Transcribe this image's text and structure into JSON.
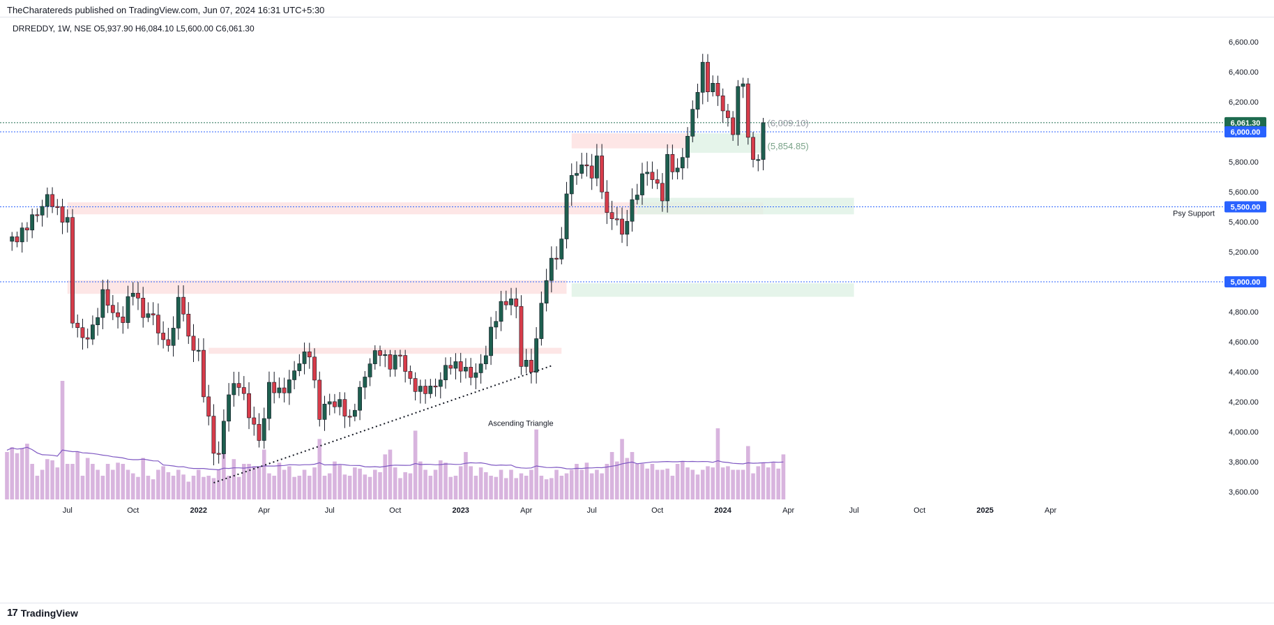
{
  "header": {
    "published": "TheCharatereds published on TradingView.com, Jun 07, 2024 16:31 UTC+5:30"
  },
  "legend": {
    "text": "DRREDDY, 1W, NSE  O5,937.90  H6,084.10  L5,600.00  C6,061.30"
  },
  "footer": {
    "brand": "TradingView",
    "logo_glyph": "17"
  },
  "colors": {
    "up": "#1e5f4f",
    "down": "#d73c4a",
    "volume": "#d8b4de",
    "ma": "#7e57c2",
    "axis_text": "#131722",
    "blue_badge": "#2962ff",
    "green_badge": "#1e6b4f"
  },
  "chart_data": {
    "type": "candlestick",
    "title": "DRREDDY, 1W, NSE",
    "ohlc": {
      "open": "5,937.90",
      "high": "6,084.10",
      "low": "5,600.00",
      "close": "6,061.30"
    },
    "ylim": [
      3550,
      6700
    ],
    "y_ticks": [
      "6,600.00",
      "6,400.00",
      "6,200.00",
      "6,000.00",
      "5,800.00",
      "5,600.00",
      "5,400.00",
      "5,200.00",
      "5,000.00",
      "4,800.00",
      "4,600.00",
      "4,400.00",
      "4,200.00",
      "4,000.00",
      "3,800.00",
      "3,600.00"
    ],
    "x_ticks": [
      "Jul",
      "Oct",
      "2022",
      "Apr",
      "Jul",
      "Oct",
      "2023",
      "Apr",
      "Jul",
      "Oct",
      "2024",
      "Apr",
      "Jul",
      "Oct",
      "2025",
      "Apr"
    ],
    "x_ticks_weeks": [
      12,
      25,
      38,
      51,
      64,
      77,
      90,
      103,
      116,
      129,
      142,
      155,
      168,
      181,
      194,
      207
    ],
    "anchors": [
      [
        0,
        5250
      ],
      [
        5,
        5400
      ],
      [
        8,
        5580
      ],
      [
        10,
        5450
      ],
      [
        12,
        5420
      ],
      [
        13,
        4750
      ],
      [
        15,
        4600
      ],
      [
        17,
        4700
      ],
      [
        19,
        4900
      ],
      [
        21,
        4800
      ],
      [
        23,
        4750
      ],
      [
        25,
        4950
      ],
      [
        27,
        4800
      ],
      [
        29,
        4750
      ],
      [
        31,
        4600
      ],
      [
        33,
        4650
      ],
      [
        34,
        4900
      ],
      [
        36,
        4650
      ],
      [
        38,
        4500
      ],
      [
        39,
        4250
      ],
      [
        41,
        3900
      ],
      [
        42,
        3850
      ],
      [
        44,
        4250
      ],
      [
        46,
        4350
      ],
      [
        48,
        4100
      ],
      [
        50,
        3950
      ],
      [
        52,
        4300
      ],
      [
        54,
        4250
      ],
      [
        56,
        4350
      ],
      [
        58,
        4450
      ],
      [
        60,
        4550
      ],
      [
        62,
        4100
      ],
      [
        64,
        4200
      ],
      [
        66,
        4200
      ],
      [
        68,
        4050
      ],
      [
        70,
        4300
      ],
      [
        72,
        4450
      ],
      [
        74,
        4550
      ],
      [
        76,
        4450
      ],
      [
        78,
        4500
      ],
      [
        80,
        4350
      ],
      [
        82,
        4250
      ],
      [
        84,
        4300
      ],
      [
        86,
        4350
      ],
      [
        88,
        4450
      ],
      [
        90,
        4450
      ],
      [
        92,
        4350
      ],
      [
        94,
        4450
      ],
      [
        96,
        4650
      ],
      [
        98,
        4850
      ],
      [
        100,
        4900
      ],
      [
        101,
        4800
      ],
      [
        102,
        4450
      ],
      [
        104,
        4450
      ],
      [
        105,
        4600
      ],
      [
        106,
        4850
      ],
      [
        107,
        5000
      ],
      [
        108,
        5150
      ],
      [
        110,
        5250
      ],
      [
        111,
        5600
      ],
      [
        113,
        5750
      ],
      [
        114,
        5800
      ],
      [
        116,
        5700
      ],
      [
        117,
        5800
      ],
      [
        118,
        5650
      ],
      [
        119,
        5450
      ],
      [
        121,
        5400
      ],
      [
        122,
        5300
      ],
      [
        123,
        5450
      ],
      [
        125,
        5600
      ],
      [
        127,
        5750
      ],
      [
        129,
        5650
      ],
      [
        130,
        5550
      ],
      [
        131,
        5800
      ],
      [
        133,
        5750
      ],
      [
        135,
        5950
      ],
      [
        137,
        6300
      ],
      [
        138,
        6450
      ],
      [
        139,
        6300
      ],
      [
        141,
        6250
      ],
      [
        142,
        6150
      ],
      [
        143,
        6100
      ],
      [
        144,
        6000
      ],
      [
        145,
        6250
      ],
      [
        146,
        6350
      ],
      [
        147,
        5950
      ],
      [
        148,
        5850
      ],
      [
        149,
        5800
      ],
      [
        150,
        6061
      ]
    ],
    "volume": [
      0.4,
      0.44,
      0.39,
      0.43,
      0.47,
      0.3,
      0.2,
      0.25,
      0.34,
      0.33,
      0.27,
      1.0,
      0.3,
      0.3,
      0.4,
      0.2,
      0.35,
      0.3,
      0.25,
      0.2,
      0.3,
      0.25,
      0.31,
      0.3,
      0.25,
      0.22,
      0.19,
      0.35,
      0.2,
      0.17,
      0.25,
      0.28,
      0.23,
      0.2,
      0.25,
      0.21,
      0.15,
      0.2,
      0.25,
      0.19,
      0.2,
      0.18,
      0.25,
      0.58,
      0.2,
      0.34,
      0.19,
      0.3,
      0.3,
      0.28,
      0.28,
      0.42,
      0.22,
      0.2,
      0.31,
      0.25,
      0.28,
      0.19,
      0.2,
      0.25,
      0.2,
      0.27,
      0.51,
      0.2,
      0.22,
      0.32,
      0.29,
      0.21,
      0.2,
      0.27,
      0.26,
      0.21,
      0.19,
      0.25,
      0.23,
      0.38,
      0.42,
      0.27,
      0.18,
      0.23,
      0.22,
      0.58,
      0.32,
      0.25,
      0.2,
      0.25,
      0.33,
      0.31,
      0.19,
      0.2,
      0.28,
      0.4,
      0.28,
      0.2,
      0.27,
      0.23,
      0.2,
      0.19,
      0.25,
      0.18,
      0.25,
      0.18,
      0.22,
      0.2,
      0.25,
      0.59,
      0.2,
      0.17,
      0.18,
      0.25,
      0.2,
      0.22,
      0.25,
      0.3,
      0.25,
      0.31,
      0.22,
      0.25,
      0.22,
      0.3,
      0.4,
      0.32,
      0.51,
      0.35,
      0.4,
      0.3,
      0.3,
      0.26,
      0.3,
      0.25,
      0.25,
      0.26,
      0.2,
      0.3,
      0.32,
      0.27,
      0.25,
      0.21,
      0.25,
      0.28,
      0.27,
      0.6,
      0.27,
      0.28,
      0.25,
      0.25,
      0.25,
      0.45,
      0.22,
      0.28,
      0.31,
      0.27,
      0.31,
      0.26,
      0.38
    ],
    "levels": [
      {
        "label": "6,061.30",
        "price": 6061.3,
        "type": "last_price"
      },
      {
        "label": "6,000.00",
        "price": 6000,
        "type": "horizontal_line"
      },
      {
        "label": "5,500.00",
        "price": 5500,
        "type": "horizontal_line",
        "note": "Psy Support"
      },
      {
        "label": "5,000.00",
        "price": 5000,
        "type": "horizontal_line"
      }
    ],
    "annotations": [
      {
        "text": "(6,009.10)",
        "price": 6009.1
      },
      {
        "text": "(5,854.85)",
        "price": 5854.85
      },
      {
        "text": "Ascending Triangle"
      },
      {
        "text": "Psy Support"
      }
    ],
    "zones": [
      {
        "type": "resistance",
        "from_week": 12,
        "to_week": 150,
        "low": 5450,
        "high": 5530
      },
      {
        "type": "resistance",
        "from_week": 12,
        "to_week": 111,
        "low": 4920,
        "high": 5010
      },
      {
        "type": "resistance",
        "from_week": 40,
        "to_week": 110,
        "low": 4520,
        "high": 4560
      },
      {
        "type": "resistance",
        "from_week": 112,
        "to_week": 135,
        "low": 5890,
        "high": 5990
      },
      {
        "type": "support",
        "from_week": 135,
        "to_week": 150,
        "low": 5860,
        "high": 5990
      },
      {
        "type": "support",
        "from_week": 112,
        "to_week": 168,
        "low": 4900,
        "high": 4990
      },
      {
        "type": "support",
        "from_week": 125,
        "to_week": 168,
        "low": 5450,
        "high": 5560
      }
    ]
  }
}
